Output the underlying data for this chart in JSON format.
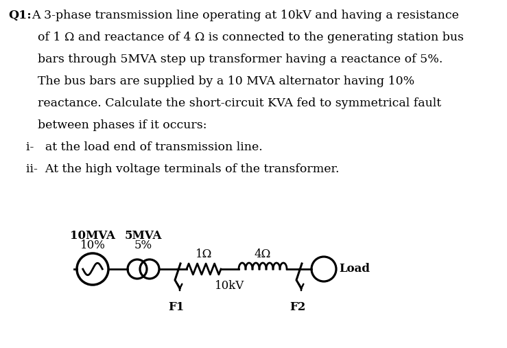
{
  "background_color": "#ffffff",
  "text_color": "#000000",
  "fig_width": 7.39,
  "fig_height": 5.07,
  "dpi": 100,
  "text_blocks": {
    "q1_bold": "Q1:",
    "line0": "A 3-phase transmission line operating at 10kV and having a resistance",
    "lines": [
      "of 1 Ω and reactance of 4 Ω is connected to the generating station bus",
      "bars through 5MVA step up transformer having a reactance of 5%.",
      "The bus bars are supplied by a 10 MVA alternator having 10%",
      "reactance. Calculate the short-circuit KVA fed to symmetrical fault",
      "between phases if it occurs:"
    ],
    "list_items": [
      "i-   at the load end of transmission line.",
      "ii-  At the high voltage terminals of the transformer."
    ]
  },
  "diagram": {
    "gen_label1": "10MVA",
    "gen_label2": "5MVA",
    "gen_pct1": "10%",
    "gen_pct2": "5%",
    "r_label": "1Ω",
    "l_label": "4Ω",
    "v_label": "10kV",
    "f1_label": "F1",
    "f2_label": "F2",
    "load_label": "Load"
  }
}
